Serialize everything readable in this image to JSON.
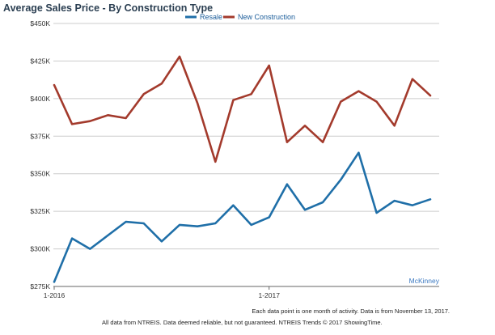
{
  "chart_data": {
    "type": "line",
    "title": "Average Sales Price - By Construction Type",
    "x": [
      "2016-01",
      "2016-02",
      "2016-03",
      "2016-04",
      "2016-05",
      "2016-06",
      "2016-07",
      "2016-08",
      "2016-09",
      "2016-10",
      "2016-11",
      "2016-12",
      "2017-01",
      "2017-02",
      "2017-03",
      "2017-04",
      "2017-05",
      "2017-06",
      "2017-07",
      "2017-08",
      "2017-09",
      "2017-10"
    ],
    "x_ticks": [
      "1-2016",
      "1-2017"
    ],
    "y_ticks": [
      "$275K",
      "$300K",
      "$325K",
      "$350K",
      "$375K",
      "$400K",
      "$425K",
      "$450K"
    ],
    "ylim": [
      275000,
      450000
    ],
    "grid": true,
    "legend_position": "top-center",
    "series": [
      {
        "name": "Resale",
        "color": "#1f6fa8",
        "values": [
          278000,
          307000,
          300000,
          309000,
          318000,
          317000,
          305000,
          316000,
          315000,
          317000,
          329000,
          316000,
          321000,
          343000,
          326000,
          331000,
          346000,
          364000,
          324000,
          332000,
          329000,
          333000
        ]
      },
      {
        "name": "New Construction",
        "color": "#a33a2c",
        "values": [
          409000,
          383000,
          385000,
          389000,
          387000,
          403000,
          410000,
          428000,
          397000,
          358000,
          399000,
          403000,
          422000,
          371000,
          382000,
          371000,
          398000,
          405000,
          398000,
          382000,
          413000,
          402000
        ]
      }
    ],
    "region_label": "McKinney",
    "footnote": "Each data point is one month of activity. Data is from November 13, 2017.",
    "disclaimer": "All data from NTREIS. Data deemed reliable, but not guaranteed. NTREIS Trends © 2017 ShowingTime."
  }
}
